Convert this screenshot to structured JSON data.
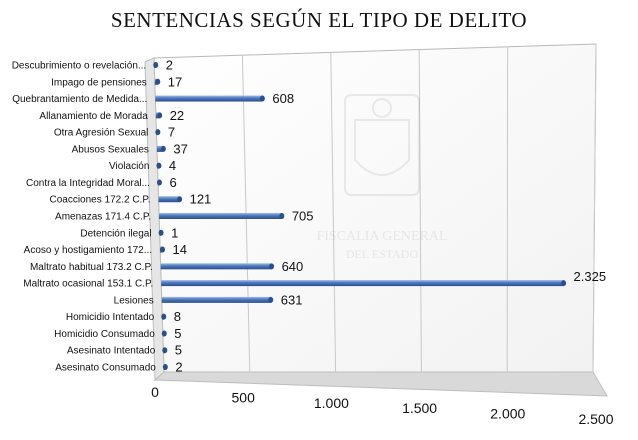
{
  "chart_data": {
    "type": "bar",
    "orientation": "horizontal",
    "style": "3d-cylinder",
    "title": "SENTENCIAS SEGÚN EL TIPO DE DELITO",
    "categories": [
      "Descubrimiento o revelación...",
      "Impago de pensiones",
      "Quebrantamiento de Medida...",
      "Allanamiento de Morada",
      "Otra Agresión Sexual",
      "Abusos Sexuales",
      "Violación",
      "Contra la Integridad Moral...",
      "Coacciones 172.2 C.P.",
      "Amenazas 171.4 C.P.",
      "Detención ilegal",
      "Acoso y hostigamiento 172...",
      "Maltrato habitual 173.2 C.P.",
      "Maltrato ocasional 153.1 C.P.",
      "Lesiones",
      "Homicidio Intentado",
      "Homicidio Consumado",
      "Asesinato Intentado",
      "Asesinato Consumado"
    ],
    "values": [
      2,
      17,
      608,
      22,
      7,
      37,
      4,
      6,
      121,
      705,
      1,
      14,
      640,
      2325,
      631,
      8,
      5,
      5,
      2
    ],
    "value_labels": [
      "2",
      "17",
      "608",
      "22",
      "7",
      "37",
      "4",
      "6",
      "121",
      "705",
      "1",
      "14",
      "640",
      "2.325",
      "631",
      "8",
      "5",
      "5",
      "2"
    ],
    "xlim": [
      0,
      2500
    ],
    "x_ticks": [
      0,
      500,
      1000,
      1500,
      2000,
      2500
    ],
    "x_tick_labels": [
      "0",
      "500",
      "1.000",
      "1.500",
      "2.000",
      "2.500"
    ],
    "grid": true,
    "legend": "none",
    "colors": {
      "bar": "#4a76bc",
      "bar_dark": "#2c4f8a",
      "bar_light": "#9dbbe8",
      "wall": "#f2f2f2",
      "floor": "#d9d9d9",
      "grid": "#c8c8c8"
    }
  }
}
